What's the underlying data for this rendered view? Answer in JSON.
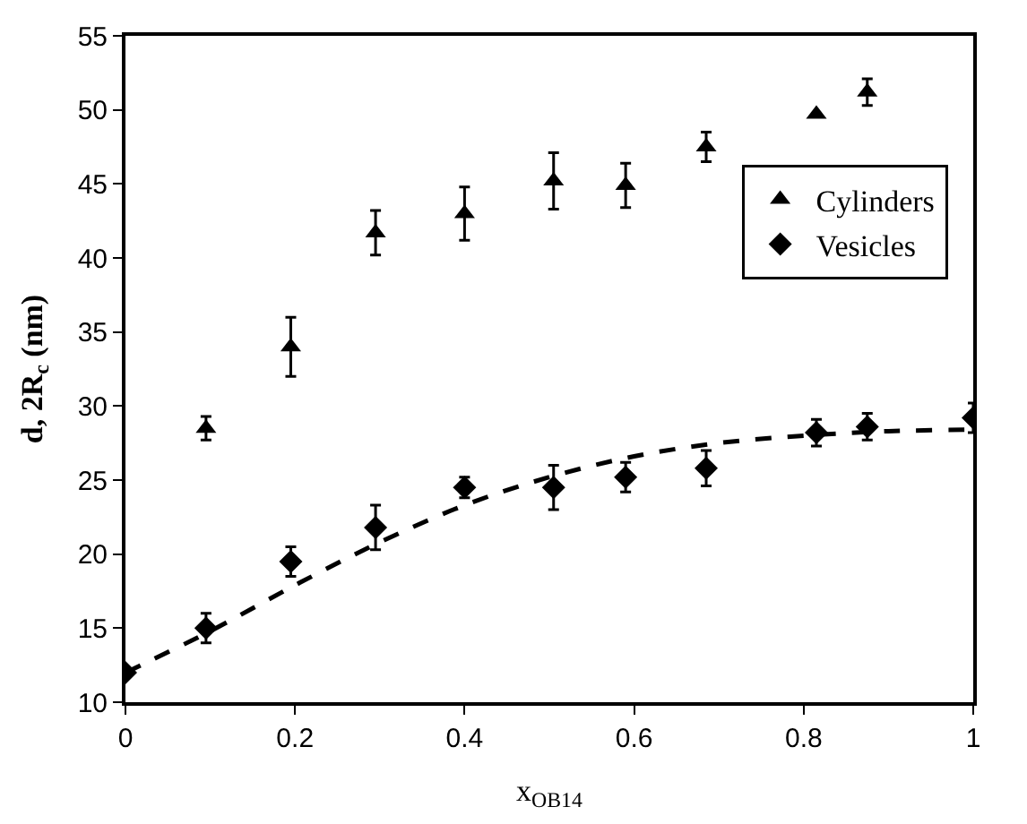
{
  "chart_data": {
    "type": "scatter",
    "xlabel": "x$_{OB14}$",
    "ylabel": "d, 2R$_{c}$ (nm)",
    "xlim": [
      0,
      1
    ],
    "xticks": [
      0,
      0.2,
      0.4,
      0.6,
      0.8,
      1
    ],
    "ylim": [
      10,
      55
    ],
    "yticks": [
      10,
      15,
      20,
      25,
      30,
      35,
      40,
      45,
      50,
      55
    ],
    "legend": "right",
    "series": [
      {
        "name": "Cylinders",
        "color": "#000000",
        "marker": "triangle",
        "x": [
          0.095,
          0.195,
          0.295,
          0.4,
          0.505,
          0.59,
          0.685,
          0.815,
          0.875
        ],
        "values": [
          28.5,
          34,
          41.7,
          43,
          45.2,
          44.9,
          47.5,
          49.7,
          51.2
        ],
        "errors": [
          0.8,
          2,
          1.5,
          1.8,
          1.9,
          1.5,
          1,
          null,
          0.9
        ]
      },
      {
        "name": "Vesicles",
        "color": "#000000",
        "marker": "diamond",
        "x": [
          0,
          0.095,
          0.195,
          0.295,
          0.4,
          0.505,
          0.59,
          0.685,
          0.815,
          0.875,
          1.0
        ],
        "values": [
          12,
          15,
          19.5,
          21.8,
          24.5,
          24.5,
          25.2,
          25.8,
          28.2,
          28.6,
          29.2
        ],
        "errors": [
          null,
          1,
          1,
          1.5,
          0.7,
          1.5,
          1,
          1.2,
          0.9,
          0.9,
          1
        ]
      },
      {
        "type": "line",
        "color": "#000000",
        "line_style": "dashed",
        "marker": "none",
        "x": [
          0,
          0.1,
          0.2,
          0.3,
          0.4,
          0.5,
          0.6,
          0.7,
          0.8,
          0.9,
          1.0
        ],
        "values": [
          12,
          14.8,
          17.9,
          20.8,
          23.3,
          25.2,
          26.6,
          27.5,
          28.0,
          28.3,
          28.4
        ]
      }
    ]
  }
}
